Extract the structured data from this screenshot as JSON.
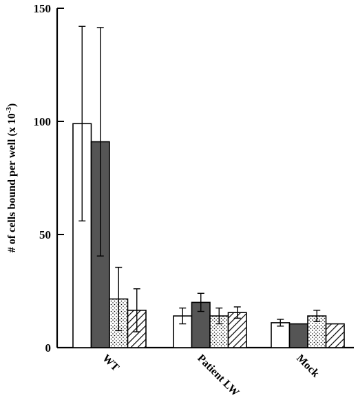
{
  "chart_data": {
    "type": "bar",
    "ylabel": "# of cells bound per well (x 10",
    "ylabel_sup": "-3",
    "ylabel_close": ")",
    "ylim": [
      0,
      150
    ],
    "yticks": [
      0,
      50,
      100,
      150
    ],
    "categories": [
      "WT",
      "Patient LW",
      "Mock"
    ],
    "series": [
      {
        "pattern": "white",
        "values": [
          99,
          14,
          11
        ],
        "errors": [
          43,
          3.5,
          1.5
        ]
      },
      {
        "pattern": "dark",
        "values": [
          91,
          20,
          10.5
        ],
        "errors": [
          50.5,
          4,
          0
        ]
      },
      {
        "pattern": "dotted",
        "values": [
          21.5,
          14,
          14
        ],
        "errors": [
          14,
          3.5,
          2.5
        ]
      },
      {
        "pattern": "hatched",
        "values": [
          16.5,
          15.5,
          10.5
        ],
        "errors": [
          9.5,
          2.5,
          0
        ]
      }
    ],
    "colors": {
      "dark": "#555555",
      "axis": "#000000"
    }
  }
}
